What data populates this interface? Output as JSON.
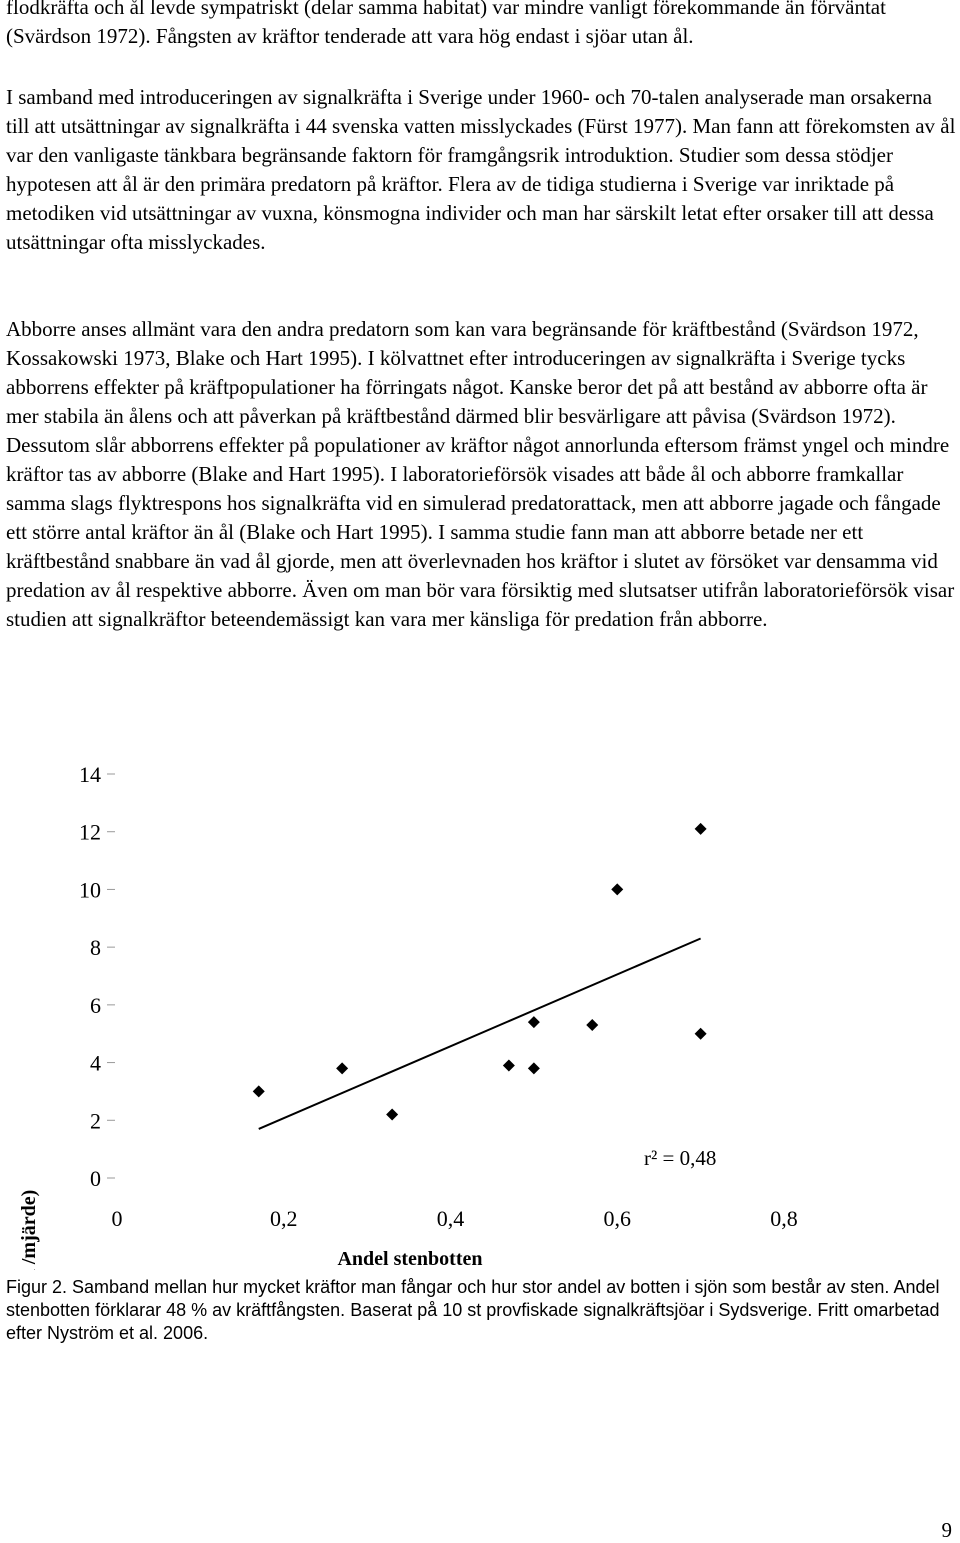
{
  "paragraphs": [
    "flodkräfta och ål levde sympatriskt (delar samma habitat) var mindre vanligt förekommande än förväntat (Svärdson 1972). Fångsten av kräftor tenderade att vara hög endast i sjöar utan ål.",
    "I samband med introduceringen av signalkräfta i Sverige under 1960- och 70-talen analyserade man orsakerna till att utsättningar av signalkräfta i 44 svenska vatten misslyckades (Fürst 1977). Man fann att förekomsten av ål var den vanligaste tänkbara begränsande faktorn för framgångsrik introduktion. Studier som dessa stödjer hypotesen att ål är den primära predatorn på kräftor. Flera av de tidiga studierna i Sverige var inriktade på metodiken vid utsättningar av vuxna, könsmogna individer och man har särskilt letat efter orsaker till att dessa utsättningar ofta misslyckades.",
    "Abborre anses allmänt vara den andra predatorn som kan vara begränsande för kräftbestånd (Svärdson 1972, Kossakowski 1973, Blake och Hart 1995). I kölvattnet efter introduceringen av signalkräfta i Sverige tycks abborrens effekter på kräftpopulationer ha förringats något. Kanske beror det på att bestånd av abborre ofta är mer stabila än ålens och att påverkan på kräftbestånd därmed blir besvärligare att påvisa (Svärdson 1972). Dessutom slår abborrens effekter på populationer av kräftor något annorlunda eftersom främst yngel och mindre kräftor tas av abborre (Blake and Hart 1995). I laboratorieförsök visades att både ål och abborre framkallar samma slags flyktrespons hos signalkräfta vid en simulerad predatorattack, men att abborre jagade och fångade ett större antal kräftor än ål (Blake och Hart 1995). I samma studie fann man att abborre betade ner ett kräftbestånd snabbare än vad ål gjorde, men att överlevnaden hos kräftor i slutet av försöket var densamma vid predation av ål respektive abborre. Även om man bör vara försiktig med slutsatser utifrån laboratorieförsök visar studien att signalkräftor beteendemässigt kan vara mer känsliga för predation från abborre."
  ],
  "chart_data": {
    "type": "scatter",
    "xlabel": "Andel stenbotten",
    "ylabel": "Fångst signalkräfta (antal /mjärde)",
    "xlim": [
      0,
      0.8
    ],
    "ylim": [
      0,
      14
    ],
    "x_ticks": [
      0,
      0.2,
      0.4,
      0.6,
      0.8
    ],
    "x_tick_labels": [
      "0",
      "0,2",
      "0,4",
      "0,6",
      "0,8"
    ],
    "y_ticks": [
      0,
      2,
      4,
      6,
      8,
      10,
      12,
      14
    ],
    "y_tick_labels": [
      "0",
      "2",
      "4",
      "6",
      "8",
      "10",
      "12",
      "14"
    ],
    "grid": false,
    "points": [
      {
        "x": 0.17,
        "y": 3.0
      },
      {
        "x": 0.27,
        "y": 3.8
      },
      {
        "x": 0.33,
        "y": 2.2
      },
      {
        "x": 0.47,
        "y": 3.9
      },
      {
        "x": 0.5,
        "y": 3.8
      },
      {
        "x": 0.5,
        "y": 5.4
      },
      {
        "x": 0.57,
        "y": 5.3
      },
      {
        "x": 0.6,
        "y": 10.0
      },
      {
        "x": 0.7,
        "y": 12.1
      },
      {
        "x": 0.7,
        "y": 5.0
      }
    ],
    "trendline": [
      {
        "x": 0.17,
        "y": 1.7
      },
      {
        "x": 0.7,
        "y": 8.3
      }
    ],
    "annotation": "r² = 0,48",
    "marker_color": "#000000"
  },
  "caption": "Figur 2. Samband mellan hur mycket kräftor man fångar och hur stor andel av botten i sjön som består av sten. Andel stenbotten förklarar 48 % av kräftfångsten. Baserat på 10 st provfiskade signalkräftsjöar i Sydsverige. Fritt omarbetad efter Nyström et al. 2006.",
  "page_number": "9"
}
